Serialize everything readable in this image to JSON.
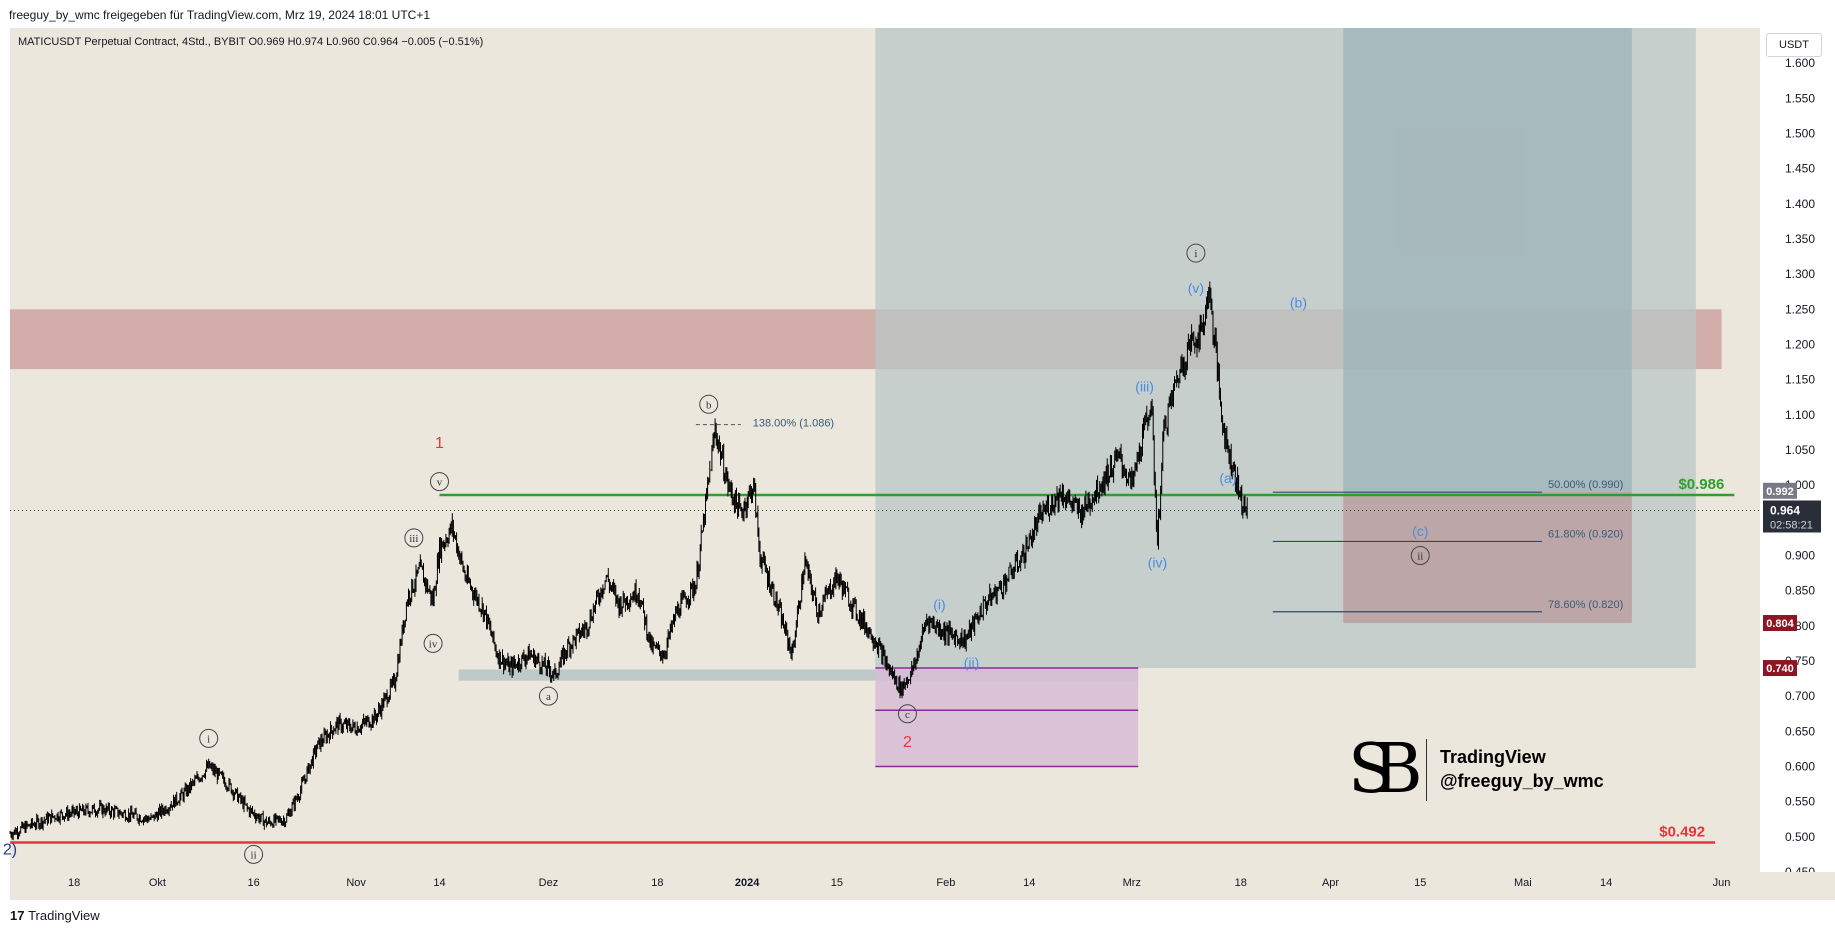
{
  "header": {
    "publisher": "freeguy_by_wmc freigegeben für TradingView.com, Mrz 19, 2024 18:01 UTC+1"
  },
  "symbol_info": "MATICUSDT Perpetual Contract, 4Std., BYBIT  O0.969  H0.974  L0.960  C0.964  −0.005 (−0.51%)",
  "currency": "USDT",
  "footer": {
    "brand_mark": "17",
    "brand": "TradingView"
  },
  "watermark": {
    "line1": "TradingView",
    "line2": "@freeguy_by_wmc"
  },
  "colors": {
    "background": "#ebe7dc",
    "candle": "#000000",
    "green_line": "#2e9e2e",
    "red_line": "#e8353b",
    "resistance_zone": "#c99a98",
    "teal_box": "#b9c7c6",
    "dark_teal_box": "#9fb4b9",
    "purple_box": "#d7bcd6",
    "blue_label": "#4b8be6",
    "price_tag_dark": "#2a2e39",
    "price_tag_red": "#8e1522"
  },
  "chart_data": {
    "type": "candlestick",
    "title": "",
    "xlabel": "",
    "ylabel": "",
    "ylim": [
      0.45,
      1.65
    ],
    "y_ticks": [
      "0.450",
      "0.500",
      "0.550",
      "0.600",
      "0.650",
      "0.700",
      "0.750",
      "0.800",
      "0.850",
      "0.900",
      "0.950",
      "1.000",
      "1.050",
      "1.100",
      "1.150",
      "1.200",
      "1.250",
      "1.300",
      "1.350",
      "1.400",
      "1.450",
      "1.500",
      "1.550",
      "1.600"
    ],
    "x_ticks": [
      {
        "label": "18",
        "date": "2023-09-18"
      },
      {
        "label": "Okt",
        "date": "2023-10-01"
      },
      {
        "label": "16",
        "date": "2023-10-16"
      },
      {
        "label": "Nov",
        "date": "2023-11-01"
      },
      {
        "label": "14",
        "date": "2023-11-14"
      },
      {
        "label": "Dez",
        "date": "2023-12-01"
      },
      {
        "label": "18",
        "date": "2023-12-18"
      },
      {
        "label": "2024",
        "date": "2024-01-01"
      },
      {
        "label": "15",
        "date": "2024-01-15"
      },
      {
        "label": "Feb",
        "date": "2024-02-01"
      },
      {
        "label": "14",
        "date": "2024-02-14"
      },
      {
        "label": "Mrz",
        "date": "2024-03-01"
      },
      {
        "label": "18",
        "date": "2024-03-18"
      },
      {
        "label": "Apr",
        "date": "2024-04-01"
      },
      {
        "label": "15",
        "date": "2024-04-15"
      },
      {
        "label": "Mai",
        "date": "2024-05-01"
      },
      {
        "label": "14",
        "date": "2024-05-14"
      },
      {
        "label": "Jun",
        "date": "2024-06-01"
      }
    ],
    "price_path": [
      [
        "2023-09-08",
        0.505
      ],
      [
        "2023-09-15",
        0.53
      ],
      [
        "2023-09-22",
        0.54
      ],
      [
        "2023-09-30",
        0.525
      ],
      [
        "2023-10-05",
        0.56
      ],
      [
        "2023-10-09",
        0.6
      ],
      [
        "2023-10-12",
        0.575
      ],
      [
        "2023-10-15",
        0.54
      ],
      [
        "2023-10-18",
        0.52
      ],
      [
        "2023-10-21",
        0.525
      ],
      [
        "2023-10-23",
        0.56
      ],
      [
        "2023-10-26",
        0.63
      ],
      [
        "2023-10-29",
        0.66
      ],
      [
        "2023-11-01",
        0.655
      ],
      [
        "2023-11-04",
        0.67
      ],
      [
        "2023-11-07",
        0.72
      ],
      [
        "2023-11-09",
        0.84
      ],
      [
        "2023-11-11",
        0.88
      ],
      [
        "2023-11-13",
        0.835
      ],
      [
        "2023-11-14",
        0.91
      ],
      [
        "2023-11-16",
        0.94
      ],
      [
        "2023-11-18",
        0.87
      ],
      [
        "2023-11-21",
        0.82
      ],
      [
        "2023-11-23",
        0.76
      ],
      [
        "2023-11-25",
        0.74
      ],
      [
        "2023-11-28",
        0.76
      ],
      [
        "2023-11-30",
        0.745
      ],
      [
        "2023-12-02",
        0.73
      ],
      [
        "2023-12-04",
        0.77
      ],
      [
        "2023-12-07",
        0.8
      ],
      [
        "2023-12-10",
        0.87
      ],
      [
        "2023-12-12",
        0.83
      ],
      [
        "2023-12-15",
        0.85
      ],
      [
        "2023-12-17",
        0.77
      ],
      [
        "2023-12-19",
        0.76
      ],
      [
        "2023-12-21",
        0.82
      ],
      [
        "2023-12-24",
        0.86
      ],
      [
        "2023-12-27",
        1.08
      ],
      [
        "2023-12-29",
        1.0
      ],
      [
        "2023-12-31",
        0.96
      ],
      [
        "2024-01-02",
        1.0
      ],
      [
        "2024-01-03",
        0.9
      ],
      [
        "2024-01-05",
        0.85
      ],
      [
        "2024-01-08",
        0.76
      ],
      [
        "2024-01-10",
        0.89
      ],
      [
        "2024-01-12",
        0.82
      ],
      [
        "2024-01-15",
        0.87
      ],
      [
        "2024-01-18",
        0.82
      ],
      [
        "2024-01-21",
        0.78
      ],
      [
        "2024-01-23",
        0.74
      ],
      [
        "2024-01-25",
        0.71
      ],
      [
        "2024-01-27",
        0.74
      ],
      [
        "2024-01-29",
        0.81
      ],
      [
        "2024-02-01",
        0.79
      ],
      [
        "2024-02-04",
        0.78
      ],
      [
        "2024-02-07",
        0.83
      ],
      [
        "2024-02-10",
        0.86
      ],
      [
        "2024-02-13",
        0.9
      ],
      [
        "2024-02-16",
        0.96
      ],
      [
        "2024-02-19",
        0.99
      ],
      [
        "2024-02-22",
        0.96
      ],
      [
        "2024-02-25",
        1.0
      ],
      [
        "2024-02-28",
        1.04
      ],
      [
        "2024-03-01",
        1.0
      ],
      [
        "2024-03-04",
        1.12
      ],
      [
        "2024-03-05",
        0.92
      ],
      [
        "2024-03-06",
        1.08
      ],
      [
        "2024-03-08",
        1.15
      ],
      [
        "2024-03-10",
        1.2
      ],
      [
        "2024-03-12",
        1.22
      ],
      [
        "2024-03-13",
        1.28
      ],
      [
        "2024-03-14",
        1.2
      ],
      [
        "2024-03-15",
        1.1
      ],
      [
        "2024-03-16",
        1.05
      ],
      [
        "2024-03-17",
        1.02
      ],
      [
        "2024-03-18",
        0.98
      ],
      [
        "2024-03-19",
        0.964
      ]
    ],
    "last_price": 0.964,
    "last_price_countdown": "02:58:21",
    "price_tags": [
      {
        "label": "0.992",
        "value": 0.992,
        "style": "gray"
      },
      {
        "label": "0.804",
        "value": 0.804,
        "style": "red"
      },
      {
        "label": "0.740",
        "value": 0.74,
        "style": "red"
      }
    ],
    "horizontal_lines": [
      {
        "name": "support",
        "value": 0.986,
        "label": "$0.986",
        "color": "#2e9e2e",
        "from": "2023-11-14",
        "to": "2024-06-03"
      },
      {
        "name": "invalidation",
        "value": 0.492,
        "label": "$0.492",
        "color": "#e8353b",
        "from": "2023-09-08",
        "to": "2024-05-31"
      }
    ],
    "zones": [
      {
        "name": "resistance",
        "from": "2023-09-08",
        "to": "2024-06-01",
        "y1": 1.165,
        "y2": 1.25
      },
      {
        "name": "teal-box",
        "from": "2024-01-21",
        "to": "2024-05-28",
        "y1": 0.74,
        "y2": 1.65
      },
      {
        "name": "dark-teal-box",
        "from": "2024-04-03",
        "to": "2024-05-18",
        "y1": 0.804,
        "y2": 1.65
      },
      {
        "name": "pink-target",
        "from": "2024-04-03",
        "to": "2024-05-18",
        "y1": 0.804,
        "y2": 0.99
      },
      {
        "name": "gray-support-strip",
        "from": "2023-11-17",
        "to": "2024-03-02",
        "y1": 0.722,
        "y2": 0.738
      },
      {
        "name": "purple-box",
        "from": "2024-01-21",
        "to": "2024-03-02",
        "y1": 0.6,
        "y2": 0.74
      }
    ],
    "purple_lines": [
      0.74,
      0.68,
      0.6
    ],
    "fib_levels": [
      {
        "label": "50.00% (0.990)",
        "value": 0.99
      },
      {
        "label": "61.80% (0.920)",
        "value": 0.92
      },
      {
        "label": "78.60% (0.820)",
        "value": 0.82
      }
    ],
    "fib_range": [
      "2024-03-23",
      "2024-05-04"
    ],
    "extension_level": {
      "label": "138.00% (1.086)",
      "value": 1.086,
      "from": "2023-12-24",
      "to": "2023-12-31"
    },
    "wave_labels": [
      {
        "text": "i",
        "date": "2023-10-09",
        "price": 0.64,
        "style": "circle"
      },
      {
        "text": "ii",
        "date": "2023-10-16",
        "price": 0.475,
        "style": "circle"
      },
      {
        "text": "iii",
        "date": "2023-11-10",
        "price": 0.925,
        "style": "circle"
      },
      {
        "text": "iv",
        "date": "2023-11-13",
        "price": 0.775,
        "style": "circle"
      },
      {
        "text": "v",
        "date": "2023-11-14",
        "price": 1.005,
        "style": "circle"
      },
      {
        "text": "1",
        "date": "2023-11-14",
        "price": 1.06,
        "style": "red"
      },
      {
        "text": "a",
        "date": "2023-12-01",
        "price": 0.7,
        "style": "circle"
      },
      {
        "text": "b",
        "date": "2023-12-26",
        "price": 1.115,
        "style": "circle"
      },
      {
        "text": "c",
        "date": "2024-01-26",
        "price": 0.675,
        "style": "circle"
      },
      {
        "text": "2",
        "date": "2024-01-26",
        "price": 0.635,
        "style": "red"
      },
      {
        "text": "(i)",
        "date": "2024-01-31",
        "price": 0.83,
        "style": "blue"
      },
      {
        "text": "(ii)",
        "date": "2024-02-05",
        "price": 0.748,
        "style": "blue"
      },
      {
        "text": "(iii)",
        "date": "2024-03-03",
        "price": 1.14,
        "style": "blue"
      },
      {
        "text": "(iv)",
        "date": "2024-03-05",
        "price": 0.89,
        "style": "blue"
      },
      {
        "text": "(v)",
        "date": "2024-03-11",
        "price": 1.28,
        "style": "blue"
      },
      {
        "text": "i",
        "date": "2024-03-11",
        "price": 1.33,
        "style": "circle"
      },
      {
        "text": "(a)",
        "date": "2024-03-16",
        "price": 1.01,
        "style": "blue"
      },
      {
        "text": "(b)",
        "date": "2024-03-27",
        "price": 1.26,
        "style": "blue"
      },
      {
        "text": "(c)",
        "date": "2024-04-15",
        "price": 0.935,
        "style": "blue"
      },
      {
        "text": "ii",
        "date": "2024-04-15",
        "price": 0.9,
        "style": "circle"
      },
      {
        "text": "2)",
        "date": "2023-09-08",
        "price": 0.482,
        "style": "navy"
      }
    ]
  }
}
